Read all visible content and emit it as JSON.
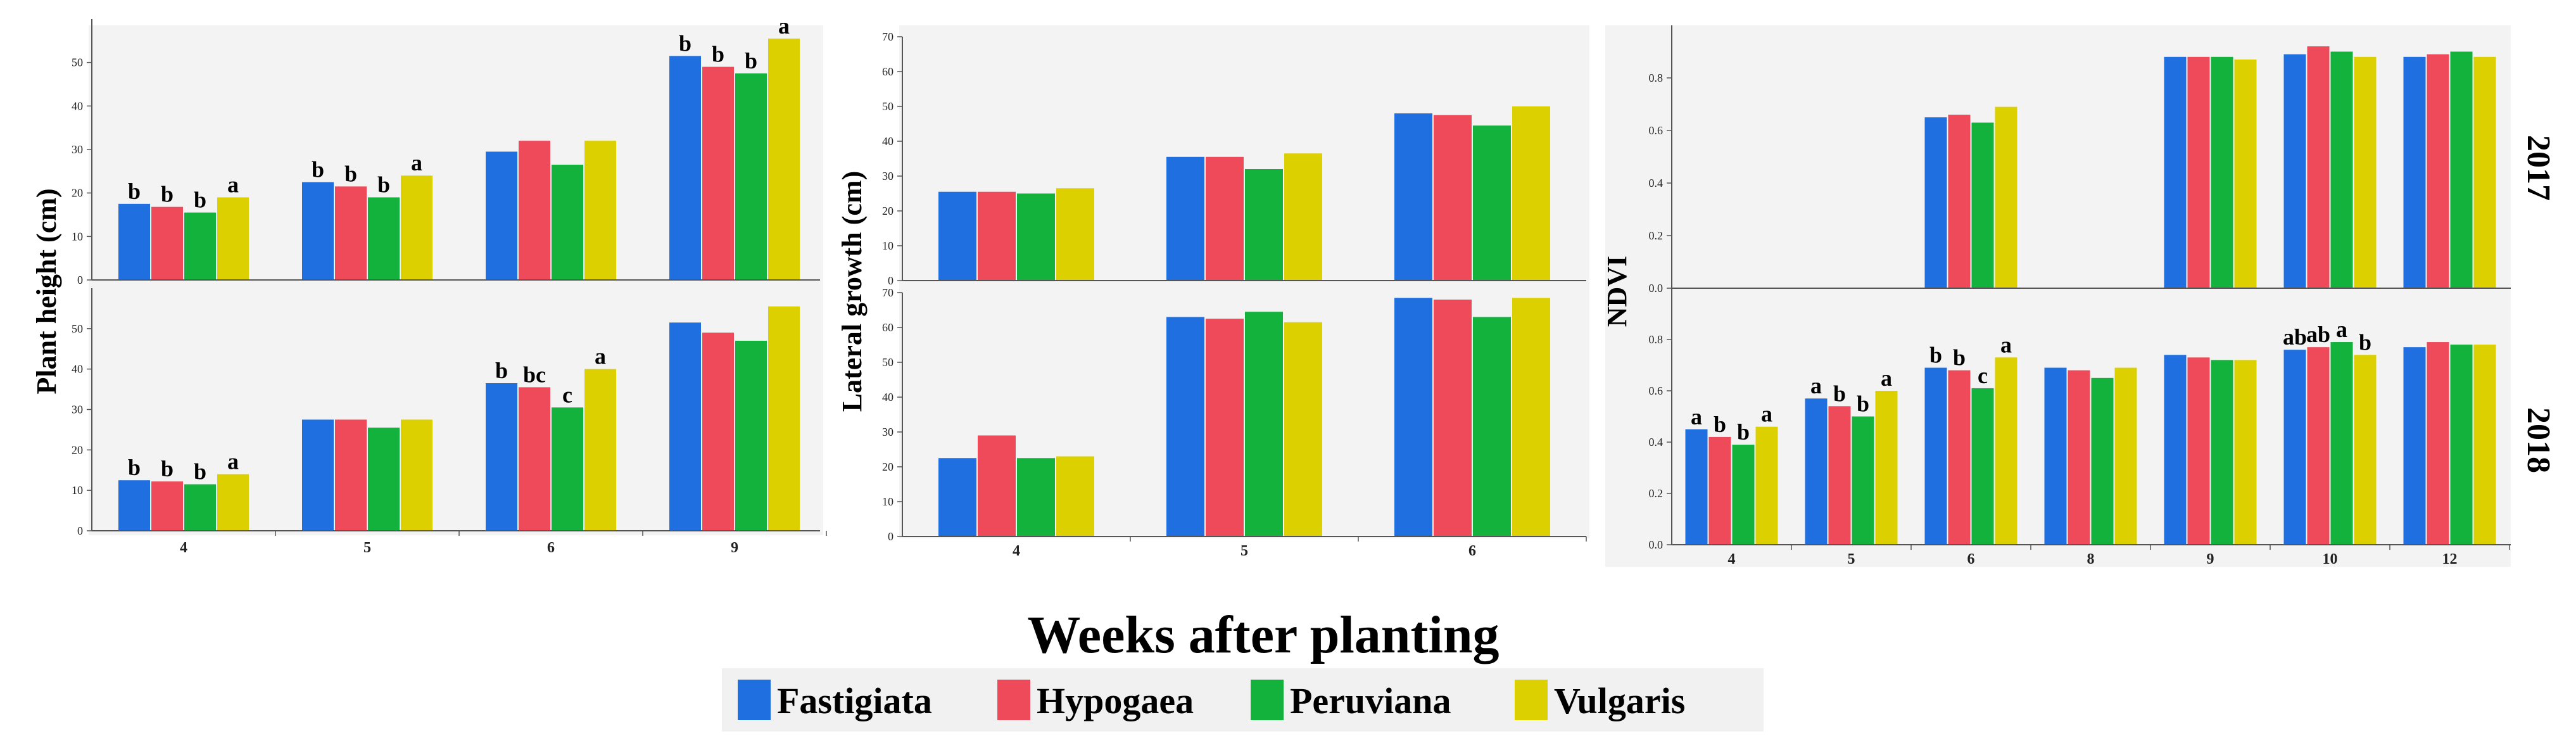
{
  "figure": {
    "x_title": "Weeks after planting",
    "legend": [
      {
        "name": "Fastigiata",
        "color": "#1f6fe0"
      },
      {
        "name": "Hypogaea",
        "color": "#ee4a5a"
      },
      {
        "name": "Peruviana",
        "color": "#12b23c"
      },
      {
        "name": "Vulgaris",
        "color": "#dcd000"
      }
    ],
    "row_labels": [
      "2017",
      "2018"
    ]
  },
  "chart_data": [
    {
      "id": "plant-height",
      "type": "bar",
      "ylabel": "Plant height (cm)",
      "categories": [
        "4",
        "5",
        "6",
        "9"
      ],
      "series_names": [
        "Fastigiata",
        "Hypogaea",
        "Peruviana",
        "Vulgaris"
      ],
      "panels": [
        {
          "year": "2017",
          "ylim": [
            0,
            60
          ],
          "yticks": [
            0,
            10,
            20,
            30,
            40,
            50
          ],
          "values": [
            [
              17.5,
              16.8,
              15.5,
              19
            ],
            [
              22.5,
              21.5,
              19,
              24
            ],
            [
              29.5,
              32,
              26.5,
              32
            ],
            [
              51.5,
              49,
              47.5,
              55.5
            ]
          ],
          "letters": [
            [
              "b",
              "b",
              "b",
              "a"
            ],
            [
              "b",
              "b",
              "b",
              "a"
            ],
            [
              "",
              "",
              "",
              ""
            ],
            [
              "b",
              "b",
              "b",
              "a"
            ]
          ]
        },
        {
          "year": "2018",
          "ylim": [
            0,
            60
          ],
          "yticks": [
            0,
            10,
            20,
            30,
            40,
            50
          ],
          "values": [
            [
              12.5,
              12.2,
              11.5,
              14
            ],
            [
              27.5,
              27.5,
              25.5,
              27.5
            ],
            [
              36.5,
              35.5,
              30.5,
              40
            ],
            [
              51.5,
              49,
              47,
              55.5
            ]
          ],
          "letters": [
            [
              "b",
              "b",
              "b",
              "a"
            ],
            [
              "",
              "",
              "",
              ""
            ],
            [
              "b",
              "bc",
              "c",
              "a"
            ],
            [
              "",
              "",
              "",
              ""
            ]
          ]
        }
      ]
    },
    {
      "id": "lateral-growth",
      "type": "bar",
      "ylabel": "Lateral growth (cm)",
      "categories": [
        "4",
        "5",
        "6"
      ],
      "series_names": [
        "Fastigiata",
        "Hypogaea",
        "Peruviana",
        "Vulgaris"
      ],
      "panels": [
        {
          "year": "2017",
          "ylim": [
            0,
            70
          ],
          "yticks": [
            0,
            10,
            20,
            30,
            40,
            50,
            60,
            70
          ],
          "values": [
            [
              25.5,
              25.5,
              25,
              26.5
            ],
            [
              35.5,
              35.5,
              32,
              36.5
            ],
            [
              48,
              47.5,
              44.5,
              50
            ]
          ],
          "letters": [
            [
              "",
              "",
              "",
              ""
            ],
            [
              "",
              "",
              "",
              ""
            ],
            [
              "",
              "",
              "",
              ""
            ]
          ]
        },
        {
          "year": "2018",
          "ylim": [
            0,
            70
          ],
          "yticks": [
            0,
            10,
            20,
            30,
            40,
            50,
            60,
            70
          ],
          "values": [
            [
              22.5,
              29,
              22.5,
              23
            ],
            [
              63,
              62.5,
              64.5,
              61.5
            ],
            [
              68.5,
              68,
              63,
              68.5
            ]
          ],
          "letters": [
            [
              "",
              "",
              "",
              ""
            ],
            [
              "",
              "",
              "",
              ""
            ],
            [
              "",
              "",
              "",
              ""
            ]
          ]
        }
      ]
    },
    {
      "id": "ndvi",
      "type": "bar",
      "ylabel": "NDVI",
      "categories": [
        "4",
        "5",
        "6",
        "8",
        "9",
        "10",
        "12"
      ],
      "series_names": [
        "Fastigiata",
        "Hypogaea",
        "Peruviana",
        "Vulgaris"
      ],
      "panels": [
        {
          "year": "2017",
          "ylim": [
            0,
            1
          ],
          "yticks": [
            0.0,
            0.2,
            0.4,
            0.6,
            0.8
          ],
          "values": [
            null,
            null,
            [
              0.65,
              0.66,
              0.63,
              0.69
            ],
            null,
            [
              0.88,
              0.88,
              0.88,
              0.87
            ],
            [
              0.89,
              0.92,
              0.9,
              0.88
            ],
            [
              0.88,
              0.89,
              0.9,
              0.88
            ]
          ],
          "letters": [
            [
              "",
              "",
              "",
              ""
            ],
            [
              "",
              "",
              "",
              ""
            ],
            [
              "",
              "",
              "",
              ""
            ],
            [
              "",
              "",
              "",
              ""
            ],
            [
              "",
              "",
              "",
              ""
            ],
            [
              "",
              "",
              "",
              ""
            ],
            [
              "",
              "",
              "",
              ""
            ]
          ]
        },
        {
          "year": "2018",
          "ylim": [
            0,
            1
          ],
          "yticks": [
            0.0,
            0.2,
            0.4,
            0.6,
            0.8
          ],
          "values": [
            [
              0.45,
              0.42,
              0.39,
              0.46
            ],
            [
              0.57,
              0.54,
              0.5,
              0.6
            ],
            [
              0.69,
              0.68,
              0.61,
              0.73
            ],
            [
              0.69,
              0.68,
              0.65,
              0.69
            ],
            [
              0.74,
              0.73,
              0.72,
              0.72
            ],
            [
              0.76,
              0.77,
              0.79,
              0.74
            ],
            [
              0.77,
              0.79,
              0.78,
              0.78
            ]
          ],
          "letters": [
            [
              "a",
              "b",
              "b",
              "a"
            ],
            [
              "a",
              "b",
              "b",
              "a"
            ],
            [
              "b",
              "b",
              "c",
              "a"
            ],
            [
              "",
              "",
              "",
              ""
            ],
            [
              "",
              "",
              "",
              ""
            ],
            [
              "ab",
              "ab",
              "a",
              "b"
            ],
            [
              "",
              "",
              "",
              ""
            ]
          ]
        }
      ]
    }
  ]
}
